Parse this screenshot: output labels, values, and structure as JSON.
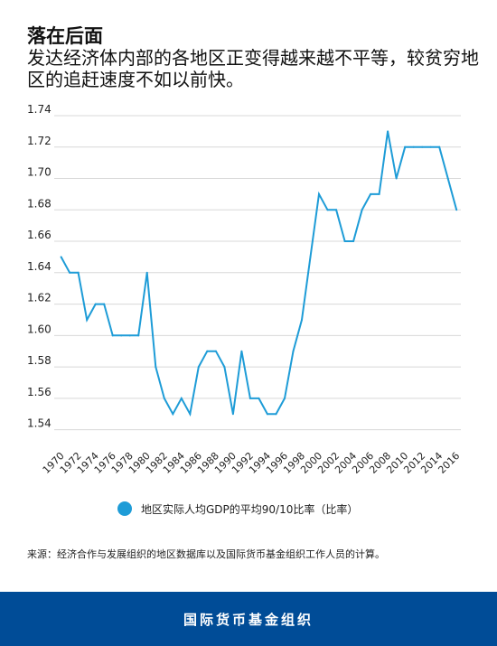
{
  "header": {
    "title": "落在后面",
    "subtitle": "发达经济体内部的各地区正变得越来越不平等，较贫穷地区的追赶速度不如以前快。"
  },
  "legend": {
    "label": "地区实际人均GDP的平均90/10比率（比率）"
  },
  "source": "来源：经济合作与发展组织的地区数据库以及国际货币基金组织工作人员的计算。",
  "footer": {
    "text": "国际货币基金组织"
  },
  "colors": {
    "series": "#1E9CD7",
    "footer_bg": "#004C97",
    "grid": "#d8d8d8"
  },
  "chart_data": {
    "type": "line",
    "title": "",
    "xlabel": "",
    "ylabel": "",
    "ylim": [
      1.53,
      1.74
    ],
    "y_ticks": [
      "1.54",
      "1.56",
      "1.58",
      "1.60",
      "1.62",
      "1.64",
      "1.66",
      "1.68",
      "1.70",
      "1.72",
      "1.74"
    ],
    "x_ticks": [
      "1970",
      "1972",
      "1974",
      "1976",
      "1978",
      "1980",
      "1982",
      "1984",
      "1986",
      "1988",
      "1990",
      "1992",
      "1994",
      "1996",
      "1998",
      "2000",
      "2002",
      "2004",
      "2006",
      "2008",
      "2010",
      "2012",
      "2014",
      "2016"
    ],
    "grid": true,
    "legend_position": "bottom",
    "series": [
      {
        "name": "地区实际人均GDP的平均90/10比率（比率）",
        "x": [
          1970,
          1971,
          1972,
          1973,
          1974,
          1975,
          1976,
          1977,
          1978,
          1979,
          1980,
          1981,
          1982,
          1983,
          1984,
          1985,
          1986,
          1987,
          1988,
          1989,
          1990,
          1991,
          1992,
          1993,
          1994,
          1995,
          1996,
          1997,
          1998,
          1999,
          2000,
          2001,
          2002,
          2003,
          2004,
          2005,
          2006,
          2007,
          2008,
          2009,
          2010,
          2011,
          2012,
          2013,
          2014,
          2015,
          2016
        ],
        "values": [
          1.65,
          1.64,
          1.64,
          1.61,
          1.62,
          1.62,
          1.6,
          1.6,
          1.6,
          1.6,
          1.64,
          1.58,
          1.56,
          1.55,
          1.56,
          1.55,
          1.58,
          1.59,
          1.59,
          1.58,
          1.55,
          1.59,
          1.56,
          1.56,
          1.55,
          1.55,
          1.56,
          1.59,
          1.61,
          1.65,
          1.69,
          1.68,
          1.68,
          1.66,
          1.66,
          1.68,
          1.69,
          1.69,
          1.73,
          1.7,
          1.72,
          1.72,
          1.72,
          1.72,
          1.72,
          1.7,
          1.68
        ]
      }
    ]
  }
}
